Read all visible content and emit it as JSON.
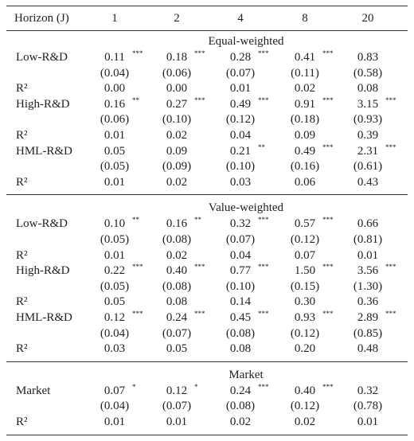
{
  "table": {
    "header": [
      "Horizon (J)",
      "1",
      "2",
      "4",
      "8",
      "20"
    ],
    "sections": [
      {
        "title": "Equal-weighted",
        "rows": [
          {
            "label": "Low-R&D",
            "cells": [
              {
                "value": "0.11",
                "stars": "***"
              },
              {
                "value": "0.18",
                "stars": "***"
              },
              {
                "value": "0.28",
                "stars": "***"
              },
              {
                "value": "0.41",
                "stars": "***"
              },
              {
                "value": "0.83"
              }
            ]
          },
          {
            "cells": [
              {
                "value": "(0.04)"
              },
              {
                "value": "(0.06)"
              },
              {
                "value": "(0.07)"
              },
              {
                "value": "(0.11)"
              },
              {
                "value": "(0.58)"
              }
            ]
          },
          {
            "label": "R²",
            "cells": [
              {
                "value": "0.00"
              },
              {
                "value": "0.00"
              },
              {
                "value": "0.01"
              },
              {
                "value": "0.02"
              },
              {
                "value": "0.08"
              }
            ]
          },
          {
            "label": "High-R&D",
            "cells": [
              {
                "value": "0.16",
                "stars": "**"
              },
              {
                "value": "0.27",
                "stars": "***"
              },
              {
                "value": "0.49",
                "stars": "***"
              },
              {
                "value": "0.91",
                "stars": "***"
              },
              {
                "value": "3.15",
                "stars": "***"
              }
            ]
          },
          {
            "cells": [
              {
                "value": "(0.06)"
              },
              {
                "value": "(0.10)"
              },
              {
                "value": "(0.12)"
              },
              {
                "value": "(0.18)"
              },
              {
                "value": "(0.93)"
              }
            ]
          },
          {
            "label": "R²",
            "cells": [
              {
                "value": "0.01"
              },
              {
                "value": "0.02"
              },
              {
                "value": "0.04"
              },
              {
                "value": "0.09"
              },
              {
                "value": "0.39"
              }
            ]
          },
          {
            "label": "HML-R&D",
            "cells": [
              {
                "value": "0.05"
              },
              {
                "value": "0.09"
              },
              {
                "value": "0.21",
                "stars": "**"
              },
              {
                "value": "0.49",
                "stars": "***"
              },
              {
                "value": "2.31",
                "stars": "***"
              }
            ]
          },
          {
            "cells": [
              {
                "value": "(0.05)"
              },
              {
                "value": "(0.09)"
              },
              {
                "value": "(0.10)"
              },
              {
                "value": "(0.16)"
              },
              {
                "value": "(0.61)"
              }
            ]
          },
          {
            "label": "R²",
            "cells": [
              {
                "value": "0.01"
              },
              {
                "value": "0.02"
              },
              {
                "value": "0.03"
              },
              {
                "value": "0.06"
              },
              {
                "value": "0.43"
              }
            ]
          }
        ]
      },
      {
        "title": "Value-weighted",
        "rows": [
          {
            "label": "Low-R&D",
            "cells": [
              {
                "value": "0.10",
                "stars": "**"
              },
              {
                "value": "0.16",
                "stars": "**"
              },
              {
                "value": "0.32",
                "stars": "***"
              },
              {
                "value": "0.57",
                "stars": "***"
              },
              {
                "value": "0.66"
              }
            ]
          },
          {
            "cells": [
              {
                "value": "(0.05)"
              },
              {
                "value": "(0.08)"
              },
              {
                "value": "(0.07)"
              },
              {
                "value": "(0.12)"
              },
              {
                "value": "(0.81)"
              }
            ]
          },
          {
            "label": "R²",
            "cells": [
              {
                "value": "0.01"
              },
              {
                "value": "0.02"
              },
              {
                "value": "0.04"
              },
              {
                "value": "0.07"
              },
              {
                "value": "0.01"
              }
            ]
          },
          {
            "label": "High-R&D",
            "cells": [
              {
                "value": "0.22",
                "stars": "***"
              },
              {
                "value": "0.40",
                "stars": "***"
              },
              {
                "value": "0.77",
                "stars": "***"
              },
              {
                "value": "1.50",
                "stars": "***"
              },
              {
                "value": "3.56",
                "stars": "***"
              }
            ]
          },
          {
            "cells": [
              {
                "value": "(0.05)"
              },
              {
                "value": "(0.08)"
              },
              {
                "value": "(0.10)"
              },
              {
                "value": "(0.15)"
              },
              {
                "value": "(1.30)"
              }
            ]
          },
          {
            "label": "R²",
            "cells": [
              {
                "value": "0.05"
              },
              {
                "value": "0.08"
              },
              {
                "value": "0.14"
              },
              {
                "value": "0.30"
              },
              {
                "value": "0.36"
              }
            ]
          },
          {
            "label": "HML-R&D",
            "cells": [
              {
                "value": "0.12",
                "stars": "***"
              },
              {
                "value": "0.24",
                "stars": "***"
              },
              {
                "value": "0.45",
                "stars": "***"
              },
              {
                "value": "0.93",
                "stars": "***"
              },
              {
                "value": "2.89",
                "stars": "***"
              }
            ]
          },
          {
            "cells": [
              {
                "value": "(0.04)"
              },
              {
                "value": "(0.07)"
              },
              {
                "value": "(0.08)"
              },
              {
                "value": "(0.12)"
              },
              {
                "value": "(0.85)"
              }
            ]
          },
          {
            "label": "R²",
            "cells": [
              {
                "value": "0.03"
              },
              {
                "value": "0.05"
              },
              {
                "value": "0.08"
              },
              {
                "value": "0.20"
              },
              {
                "value": "0.48"
              }
            ]
          }
        ]
      },
      {
        "title": "Market",
        "rows": [
          {
            "label": "Market",
            "cells": [
              {
                "value": "0.07",
                "stars": "*"
              },
              {
                "value": "0.12",
                "stars": "*"
              },
              {
                "value": "0.24",
                "stars": "***"
              },
              {
                "value": "0.40",
                "stars": "***"
              },
              {
                "value": "0.32"
              }
            ]
          },
          {
            "cells": [
              {
                "value": "(0.04)"
              },
              {
                "value": "(0.07)"
              },
              {
                "value": "(0.08)"
              },
              {
                "value": "(0.12)"
              },
              {
                "value": "(0.78)"
              }
            ]
          },
          {
            "label": "R²",
            "cells": [
              {
                "value": "0.01"
              },
              {
                "value": "0.01"
              },
              {
                "value": "0.02"
              },
              {
                "value": "0.02"
              },
              {
                "value": "0.01"
              }
            ]
          }
        ]
      }
    ]
  }
}
